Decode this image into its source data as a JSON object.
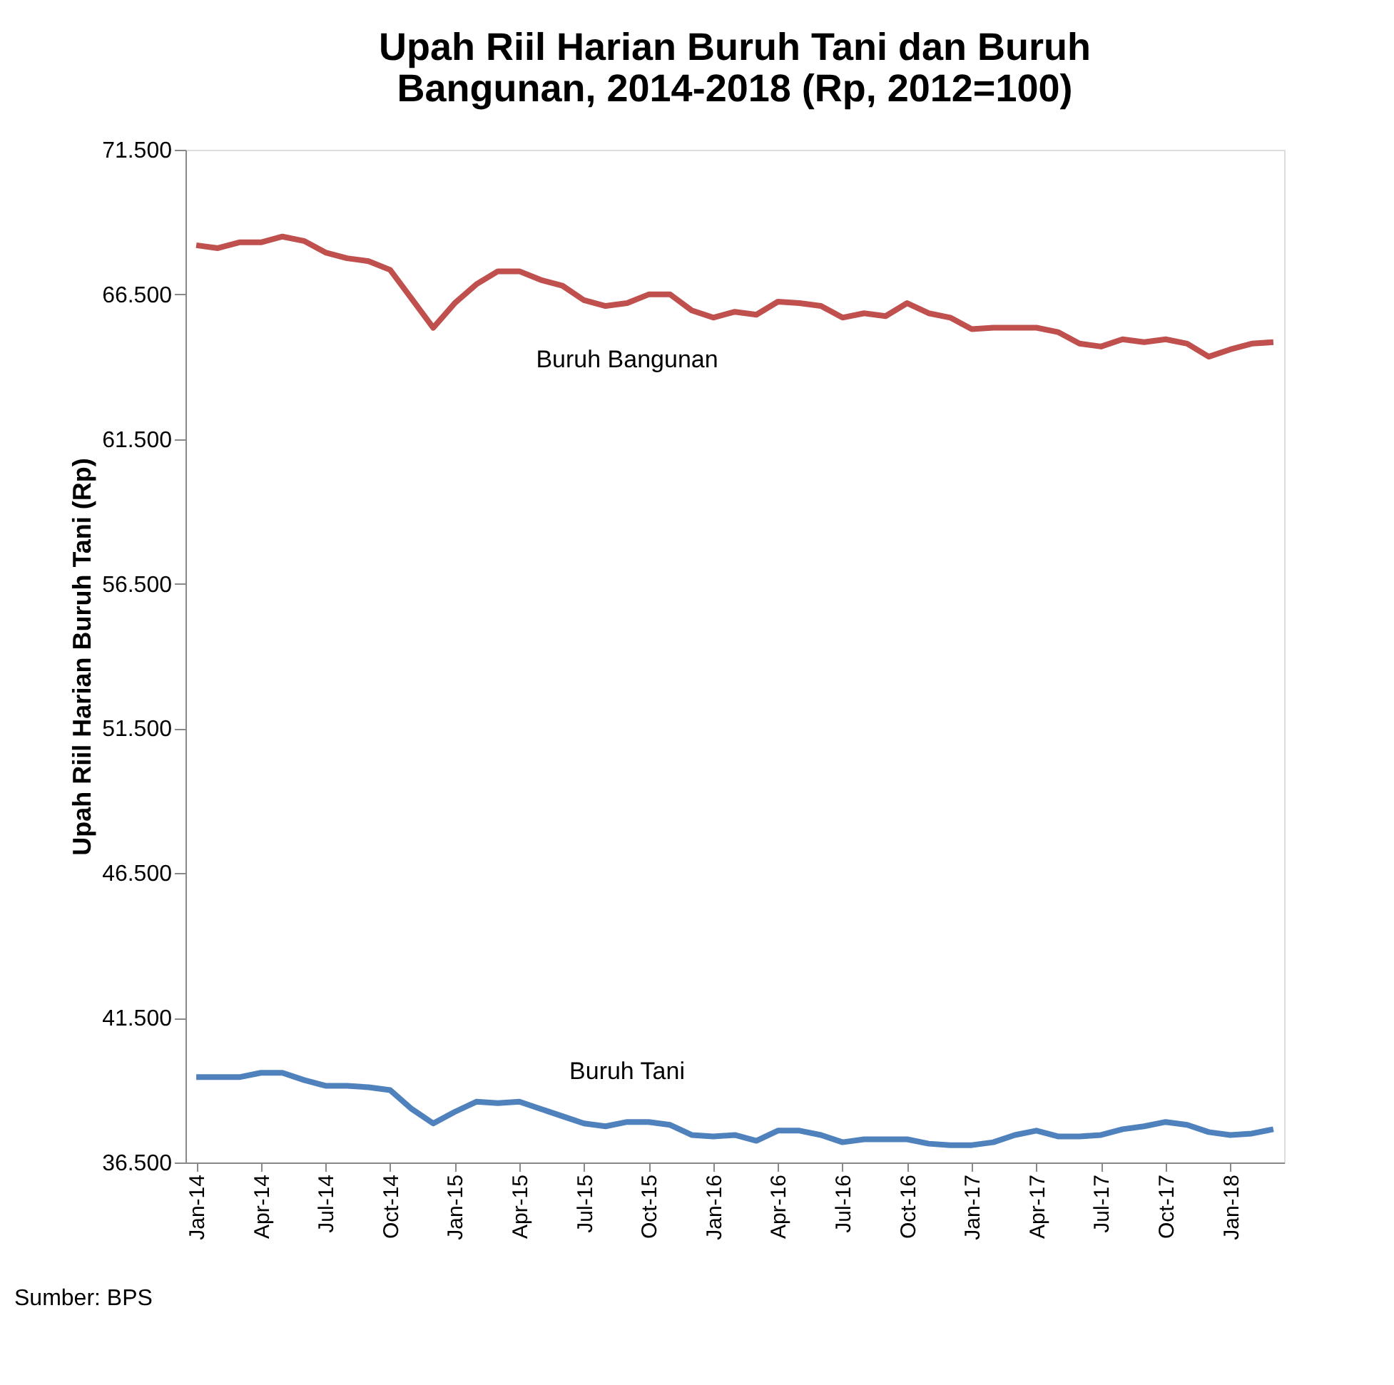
{
  "chart_data": {
    "type": "line",
    "title": "Upah Riil Harian Buruh Tani dan Buruh Bangunan, 2014-2018 (Rp, 2012=100)",
    "ylabel": "Upah Riil Harian Buruh Tani (Rp)",
    "categories": [
      "Jan-14",
      null,
      null,
      "Apr-14",
      null,
      null,
      "Jul-14",
      null,
      null,
      "Oct-14",
      null,
      null,
      "Jan-15",
      null,
      null,
      "Apr-15",
      null,
      null,
      "Jul-15",
      null,
      null,
      "Oct-15",
      null,
      null,
      "Jan-16",
      null,
      null,
      "Apr-16",
      null,
      null,
      "Jul-16",
      null,
      null,
      "Oct-16",
      null,
      null,
      "Jan-17",
      null,
      null,
      "Apr-17",
      null,
      null,
      "Jul-17",
      null,
      null,
      "Oct-17",
      null,
      null,
      "Jan-18",
      null,
      null
    ],
    "series": [
      {
        "name": "Buruh Bangunan",
        "color": "#c0504d",
        "values": [
          68200,
          68100,
          68300,
          68300,
          68500,
          68350,
          67950,
          67750,
          67650,
          67350,
          66350,
          65350,
          66200,
          66850,
          67300,
          67300,
          67000,
          66800,
          66300,
          66100,
          66200,
          66500,
          66500,
          65950,
          65700,
          65900,
          65800,
          66250,
          66200,
          66100,
          65700,
          65850,
          65750,
          66200,
          65850,
          65700,
          65300,
          65350,
          65350,
          65350,
          65200,
          64800,
          64700,
          64950,
          64850,
          64950,
          64800,
          64350,
          64600,
          64800,
          64850
        ]
      },
      {
        "name": "Buruh Tani",
        "color": "#4f81bd",
        "values": [
          39450,
          39450,
          39450,
          39600,
          39600,
          39350,
          39150,
          39150,
          39100,
          39000,
          38350,
          37850,
          38250,
          38600,
          38550,
          38600,
          38350,
          38100,
          37850,
          37750,
          37900,
          37900,
          37800,
          37450,
          37400,
          37450,
          37250,
          37600,
          37600,
          37450,
          37200,
          37300,
          37300,
          37300,
          37150,
          37100,
          37100,
          37200,
          37450,
          37600,
          37400,
          37400,
          37450,
          37650,
          37750,
          37900,
          37800,
          37550,
          37450,
          37500,
          37650
        ]
      }
    ],
    "ylim": [
      36500,
      71500
    ],
    "yticks": [
      {
        "value": 36500,
        "label": "36.500"
      },
      {
        "value": 41500,
        "label": "41.500"
      },
      {
        "value": 46500,
        "label": "46.500"
      },
      {
        "value": 51500,
        "label": "51.500"
      },
      {
        "value": 56500,
        "label": "56.500"
      },
      {
        "value": 61500,
        "label": "61.500"
      },
      {
        "value": 66500,
        "label": "66.500"
      },
      {
        "value": 71500,
        "label": "71.500"
      }
    ],
    "annotations": [
      "Sumber: BPS"
    ],
    "grid": false,
    "legend": false,
    "marker": "none",
    "line_style": "solid"
  }
}
